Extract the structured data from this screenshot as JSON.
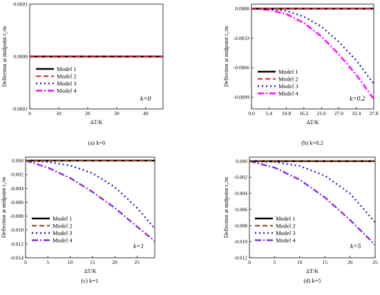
{
  "chart_data": [
    {
      "type": "line",
      "caption": "(a) k=0",
      "caption_prefix": "(a)",
      "caption_k": "k=0",
      "annotation": "k=0",
      "xlabel": "ΔT/K",
      "ylabel": "Deflection at midpoint r₂/m",
      "xlim": [
        0,
        46
      ],
      "ylim": [
        -0.0001,
        0.0001
      ],
      "x_ticks": [
        0,
        10,
        20,
        30,
        40
      ],
      "x_tick_labels": [
        "0",
        "10",
        "20",
        "30",
        "40"
      ],
      "y_ticks": [
        0.0001,
        0,
        -0.0001
      ],
      "y_tick_labels": [
        "0.0001",
        "0.0000",
        "-0.0001"
      ],
      "legend": "lower-left",
      "series": [
        {
          "name": "Model 1",
          "x": [
            0,
            46
          ],
          "y": [
            0,
            0
          ]
        },
        {
          "name": "Model 2",
          "x": [
            0,
            46
          ],
          "y": [
            0,
            0
          ]
        },
        {
          "name": "Model 3",
          "x": [
            0,
            46
          ],
          "y": [
            0,
            0
          ]
        },
        {
          "name": "Model 4",
          "x": [
            0,
            46
          ],
          "y": [
            0,
            0
          ]
        }
      ]
    },
    {
      "type": "line",
      "caption": "(b) k=0.2",
      "caption_prefix": "(b)",
      "caption_k": "k=0.2",
      "annotation": "k=0.2",
      "xlabel": "ΔT/K",
      "ylabel": "Deflection at midpoint r₂/m",
      "xlim": [
        0,
        37.8
      ],
      "ylim": [
        -0.0112,
        0.0005
      ],
      "x_ticks": [
        0,
        5.4,
        10.8,
        16.2,
        21.6,
        27.0,
        32.4,
        37.8
      ],
      "x_tick_labels": [
        "0.0",
        "5.4",
        "10.8",
        "16.2",
        "21.6",
        "27.0",
        "32.4",
        "37.8"
      ],
      "y_ticks": [
        0,
        -0.0033,
        -0.0066,
        -0.0099
      ],
      "y_tick_labels": [
        "0.0000",
        "-0.0033",
        "-0.0066",
        "-0.0099"
      ],
      "legend": "lower-left",
      "series": [
        {
          "name": "Model 1",
          "x": [
            0,
            37.8
          ],
          "y": [
            0,
            0
          ]
        },
        {
          "name": "Model 2",
          "x": [
            0,
            37.8
          ],
          "y": [
            0,
            0
          ]
        },
        {
          "name": "Model 3",
          "x": [
            0,
            5.4,
            10.8,
            16.2,
            21.6,
            27.0,
            32.4,
            37.8
          ],
          "y": [
            0,
            -3e-05,
            -0.00025,
            -0.0009,
            -0.002,
            -0.0037,
            -0.0058,
            -0.0084
          ]
        },
        {
          "name": "Model 4",
          "x": [
            0,
            5.4,
            10.8,
            16.2,
            21.6,
            27.0,
            32.4,
            37.8
          ],
          "y": [
            0,
            -0.00015,
            -0.0006,
            -0.0016,
            -0.0031,
            -0.0051,
            -0.0074,
            -0.0101
          ]
        }
      ]
    },
    {
      "type": "line",
      "caption": "(c) k=1",
      "caption_prefix": "(c)",
      "caption_k": "k=1",
      "annotation": "k=1",
      "xlabel": "ΔT/K",
      "ylabel": "Deflection at midpoint r₂/m",
      "xlim": [
        0,
        29
      ],
      "ylim": [
        -0.014,
        0.0005
      ],
      "x_ticks": [
        0,
        5,
        10,
        15,
        20,
        25
      ],
      "x_tick_labels": [
        "0",
        "5",
        "10",
        "15",
        "20",
        "25"
      ],
      "y_ticks": [
        0,
        -0.002,
        -0.004,
        -0.006,
        -0.008,
        -0.01,
        -0.012,
        -0.014
      ],
      "y_tick_labels": [
        "0.000",
        "-0.002",
        "-0.004",
        "-0.006",
        "-0.008",
        "-0.010",
        "-0.012",
        "-0.014"
      ],
      "legend": "lower-left",
      "series": [
        {
          "name": "Model 1",
          "x": [
            0,
            29
          ],
          "y": [
            0,
            0
          ]
        },
        {
          "name": "Model 2",
          "x": [
            0,
            29
          ],
          "y": [
            0,
            0
          ]
        },
        {
          "name": "Model 3",
          "x": [
            0,
            5,
            10,
            15,
            20,
            25,
            29
          ],
          "y": [
            0,
            -0.0002,
            -0.0007,
            -0.0018,
            -0.0038,
            -0.0068,
            -0.0098
          ]
        },
        {
          "name": "Model 4",
          "x": [
            0,
            5,
            10,
            15,
            20,
            25,
            29
          ],
          "y": [
            0,
            -0.001,
            -0.0025,
            -0.0045,
            -0.0068,
            -0.0095,
            -0.0116
          ]
        }
      ]
    },
    {
      "type": "line",
      "caption": "(d) k=5",
      "caption_prefix": "(d)",
      "caption_k": "k=5",
      "annotation": "k=5",
      "xlabel": "ΔT/K",
      "ylabel": "Deflection at midpoint r₂/m",
      "xlim": [
        0,
        25
      ],
      "ylim": [
        -0.012,
        0.0005
      ],
      "x_ticks": [
        0,
        5,
        10,
        15,
        20,
        25
      ],
      "x_tick_labels": [
        "0",
        "5",
        "10",
        "15",
        "20",
        "25"
      ],
      "y_ticks": [
        0,
        -0.002,
        -0.004,
        -0.006,
        -0.008,
        -0.01,
        -0.012
      ],
      "y_tick_labels": [
        "0.000",
        "-0.002",
        "-0.004",
        "-0.006",
        "-0.008",
        "-0.010",
        "-0.012"
      ],
      "legend": "lower-left",
      "series": [
        {
          "name": "Model 1",
          "x": [
            0,
            25
          ],
          "y": [
            0,
            0
          ]
        },
        {
          "name": "Model 2",
          "x": [
            0,
            25
          ],
          "y": [
            0,
            0
          ]
        },
        {
          "name": "Model 3",
          "x": [
            0,
            5,
            10,
            15,
            20,
            25
          ],
          "y": [
            0,
            -0.0001,
            -0.0006,
            -0.0018,
            -0.004,
            -0.0076
          ]
        },
        {
          "name": "Model 4",
          "x": [
            0,
            5,
            10,
            15,
            20,
            25
          ],
          "y": [
            0,
            -0.0008,
            -0.0023,
            -0.0045,
            -0.0073,
            -0.0104
          ]
        }
      ]
    }
  ],
  "series_styles": [
    {
      "color": "#000000",
      "dash": "",
      "width": 2.6
    },
    {
      "color": "#e31a1c",
      "dash": "7,4",
      "width": 2.0
    },
    {
      "color": "#1f1fd6",
      "dash": "2,4",
      "width": 2.4
    },
    {
      "color": "#ff00ff",
      "dash": "9,3,2,3",
      "width": 2.4
    }
  ],
  "series_styles_c": [
    {
      "color": "#000000",
      "dash": "",
      "width": 2.6
    },
    {
      "color": "#8b3a0e",
      "dash": "7,4",
      "width": 2.0
    },
    {
      "color": "#1f1fd6",
      "dash": "2,4",
      "width": 2.4
    },
    {
      "color": "#8a2be2",
      "dash": "9,3,2,3",
      "width": 2.4
    }
  ]
}
